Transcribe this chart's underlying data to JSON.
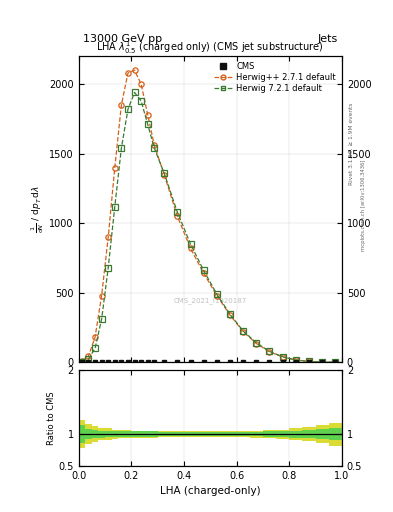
{
  "title_top": "13000 GeV pp",
  "title_right": "Jets",
  "plot_title": "LHA $\\lambda^{1}_{0.5}$ (charged only) (CMS jet substructure)",
  "xlabel": "LHA (charged-only)",
  "ylabel_main_lines": [
    "mathrm d$^2$N",
    "mathrm d p$_T$ mathrm d lambda"
  ],
  "ylabel_ratio": "Ratio to CMS",
  "right_label": "mcplots.cern.ch [arXiv:1306.3436]",
  "right_label2": "Rivet 3.1.10, ≥ 1.9M events",
  "watermark": "CMS_2021_I1920187",
  "lha_bins": [
    0.0,
    0.025,
    0.05,
    0.075,
    0.1,
    0.125,
    0.15,
    0.175,
    0.2,
    0.225,
    0.25,
    0.275,
    0.3,
    0.35,
    0.4,
    0.45,
    0.5,
    0.55,
    0.6,
    0.65,
    0.7,
    0.75,
    0.8,
    0.85,
    0.9,
    0.95,
    1.0
  ],
  "herwig_pp_values": [
    8,
    45,
    180,
    480,
    900,
    1400,
    1850,
    2080,
    2100,
    2000,
    1780,
    1560,
    1350,
    1050,
    820,
    640,
    480,
    340,
    220,
    135,
    75,
    38,
    16,
    6,
    2,
    0.5
  ],
  "herwig7_values": [
    5,
    25,
    100,
    310,
    680,
    1120,
    1540,
    1820,
    1940,
    1880,
    1710,
    1540,
    1360,
    1080,
    850,
    660,
    490,
    345,
    225,
    140,
    78,
    40,
    16,
    6,
    1.8,
    0.4
  ],
  "cms_x": [
    0.0125,
    0.0375,
    0.0625,
    0.0875,
    0.1125,
    0.1375,
    0.1625,
    0.1875,
    0.2125,
    0.2375,
    0.2625,
    0.2875,
    0.325,
    0.375,
    0.425,
    0.475,
    0.525,
    0.575,
    0.625,
    0.675,
    0.725,
    0.775,
    0.825,
    0.875,
    0.925,
    0.975
  ],
  "ylim_main": [
    0,
    2200
  ],
  "yticks_main": [
    0,
    500,
    1000,
    1500,
    2000
  ],
  "ylim_ratio": [
    0.5,
    2.0
  ],
  "yticks_ratio": [
    0.5,
    1.0,
    2.0
  ],
  "color_herwig_pp": "#d4601a",
  "color_herwig7": "#3a7a30",
  "color_cms": "#111111",
  "color_band_inner": "#50d050",
  "color_band_outer": "#d8d820",
  "cms_err_inner_low": [
    0.14,
    0.08,
    0.06,
    0.055,
    0.05,
    0.04,
    0.04,
    0.04,
    0.04,
    0.04,
    0.04,
    0.04,
    0.035,
    0.035,
    0.035,
    0.035,
    0.035,
    0.035,
    0.035,
    0.035,
    0.04,
    0.045,
    0.055,
    0.065,
    0.08,
    0.1
  ],
  "cms_err_inner_high": [
    0.14,
    0.08,
    0.06,
    0.055,
    0.05,
    0.04,
    0.04,
    0.04,
    0.04,
    0.04,
    0.04,
    0.04,
    0.035,
    0.035,
    0.035,
    0.035,
    0.035,
    0.035,
    0.035,
    0.035,
    0.04,
    0.045,
    0.055,
    0.065,
    0.08,
    0.1
  ],
  "cms_err_outer_low": [
    0.22,
    0.16,
    0.12,
    0.1,
    0.09,
    0.07,
    0.065,
    0.06,
    0.055,
    0.055,
    0.055,
    0.055,
    0.05,
    0.05,
    0.05,
    0.05,
    0.05,
    0.05,
    0.05,
    0.055,
    0.06,
    0.07,
    0.09,
    0.11,
    0.14,
    0.18
  ],
  "cms_err_outer_high": [
    0.22,
    0.16,
    0.12,
    0.1,
    0.09,
    0.07,
    0.065,
    0.06,
    0.055,
    0.055,
    0.055,
    0.055,
    0.05,
    0.05,
    0.05,
    0.05,
    0.05,
    0.05,
    0.05,
    0.055,
    0.06,
    0.07,
    0.09,
    0.11,
    0.14,
    0.18
  ]
}
